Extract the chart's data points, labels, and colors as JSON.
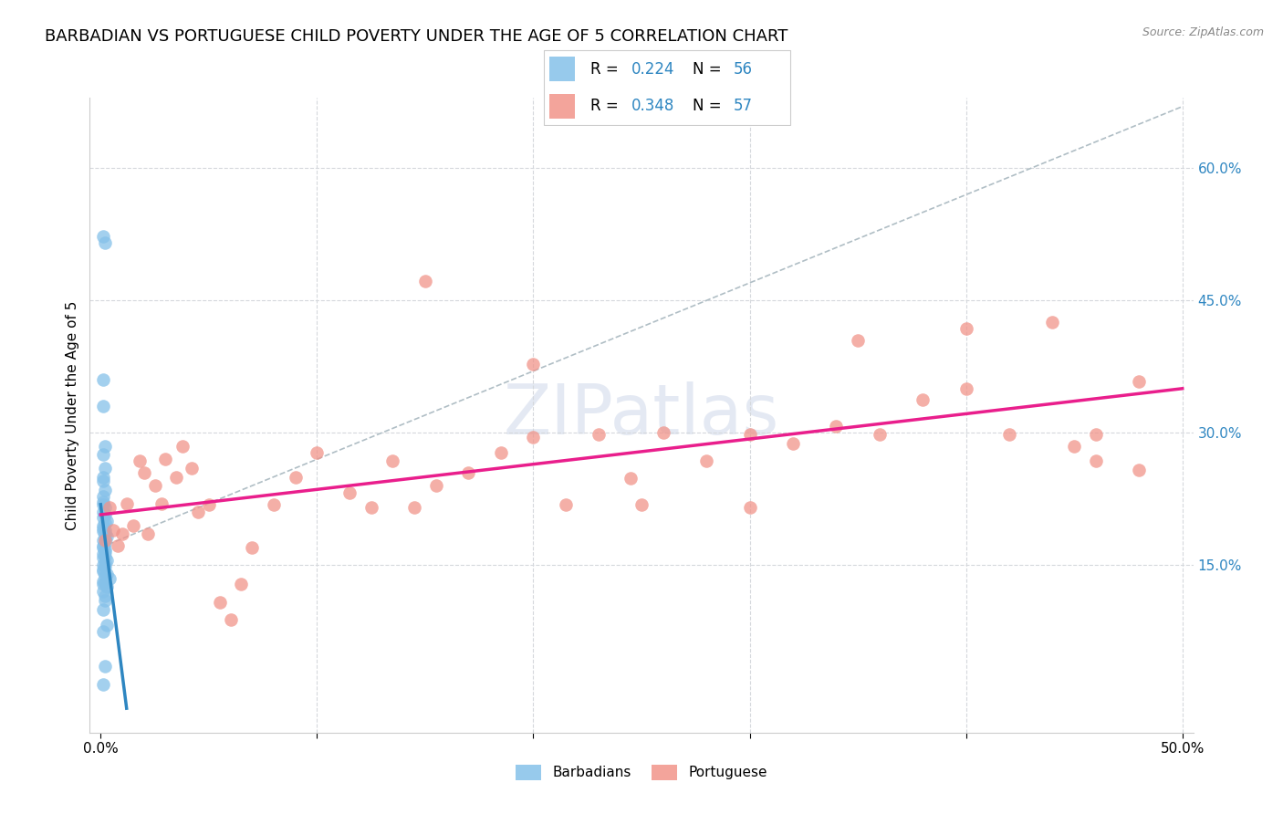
{
  "title": "BARBADIAN VS PORTUGUESE CHILD POVERTY UNDER THE AGE OF 5 CORRELATION CHART",
  "source": "Source: ZipAtlas.com",
  "ylabel": "Child Poverty Under the Age of 5",
  "xlim": [
    -0.005,
    0.505
  ],
  "ylim": [
    -0.04,
    0.68
  ],
  "yticks_right": [
    0.0,
    0.15,
    0.3,
    0.45,
    0.6
  ],
  "ytick_labels_right": [
    "",
    "15.0%",
    "30.0%",
    "45.0%",
    "60.0%"
  ],
  "color_barbadian": "#85c1e9",
  "color_portuguese": "#f1948a",
  "color_trend_barbadian": "#2e86c1",
  "color_trend_portuguese": "#e91e8c",
  "color_grid": "#d5d8dc",
  "color_legend_text": "#2e86c1",
  "title_fontsize": 13,
  "axis_label_fontsize": 11,
  "tick_fontsize": 11,
  "watermark_text": "ZIPatlas",
  "barbadian_x": [
    0.001,
    0.002,
    0.001,
    0.001,
    0.002,
    0.001,
    0.002,
    0.001,
    0.001,
    0.002,
    0.001,
    0.001,
    0.001,
    0.002,
    0.001,
    0.002,
    0.001,
    0.003,
    0.002,
    0.001,
    0.001,
    0.002,
    0.001,
    0.002,
    0.003,
    0.002,
    0.001,
    0.002,
    0.001,
    0.001,
    0.002,
    0.002,
    0.001,
    0.002,
    0.001,
    0.003,
    0.002,
    0.001,
    0.002,
    0.001,
    0.001,
    0.003,
    0.002,
    0.004,
    0.001,
    0.002,
    0.001,
    0.003,
    0.001,
    0.002,
    0.002,
    0.001,
    0.003,
    0.001,
    0.002,
    0.001
  ],
  "barbadian_y": [
    0.523,
    0.515,
    0.36,
    0.33,
    0.285,
    0.275,
    0.26,
    0.25,
    0.245,
    0.235,
    0.228,
    0.222,
    0.218,
    0.215,
    0.21,
    0.207,
    0.204,
    0.2,
    0.198,
    0.195,
    0.192,
    0.19,
    0.188,
    0.185,
    0.182,
    0.18,
    0.178,
    0.175,
    0.172,
    0.17,
    0.168,
    0.165,
    0.163,
    0.16,
    0.158,
    0.155,
    0.152,
    0.15,
    0.148,
    0.145,
    0.143,
    0.14,
    0.138,
    0.135,
    0.132,
    0.13,
    0.128,
    0.125,
    0.12,
    0.115,
    0.11,
    0.1,
    0.082,
    0.075,
    0.035,
    0.015
  ],
  "portuguese_x": [
    0.002,
    0.004,
    0.006,
    0.008,
    0.01,
    0.012,
    0.015,
    0.018,
    0.02,
    0.022,
    0.025,
    0.028,
    0.03,
    0.035,
    0.038,
    0.042,
    0.045,
    0.05,
    0.055,
    0.06,
    0.065,
    0.07,
    0.08,
    0.09,
    0.1,
    0.115,
    0.125,
    0.135,
    0.145,
    0.155,
    0.17,
    0.185,
    0.2,
    0.215,
    0.23,
    0.245,
    0.26,
    0.28,
    0.3,
    0.32,
    0.34,
    0.36,
    0.38,
    0.4,
    0.42,
    0.44,
    0.46,
    0.48,
    0.15,
    0.2,
    0.25,
    0.3,
    0.35,
    0.4,
    0.45,
    0.46,
    0.48
  ],
  "portuguese_y": [
    0.178,
    0.215,
    0.19,
    0.172,
    0.185,
    0.22,
    0.195,
    0.268,
    0.255,
    0.185,
    0.24,
    0.22,
    0.27,
    0.25,
    0.285,
    0.26,
    0.21,
    0.218,
    0.108,
    0.088,
    0.128,
    0.17,
    0.218,
    0.25,
    0.278,
    0.232,
    0.215,
    0.268,
    0.215,
    0.24,
    0.255,
    0.278,
    0.295,
    0.218,
    0.298,
    0.248,
    0.3,
    0.268,
    0.298,
    0.288,
    0.308,
    0.298,
    0.338,
    0.418,
    0.298,
    0.425,
    0.298,
    0.358,
    0.472,
    0.378,
    0.218,
    0.215,
    0.405,
    0.35,
    0.285,
    0.268,
    0.258
  ]
}
